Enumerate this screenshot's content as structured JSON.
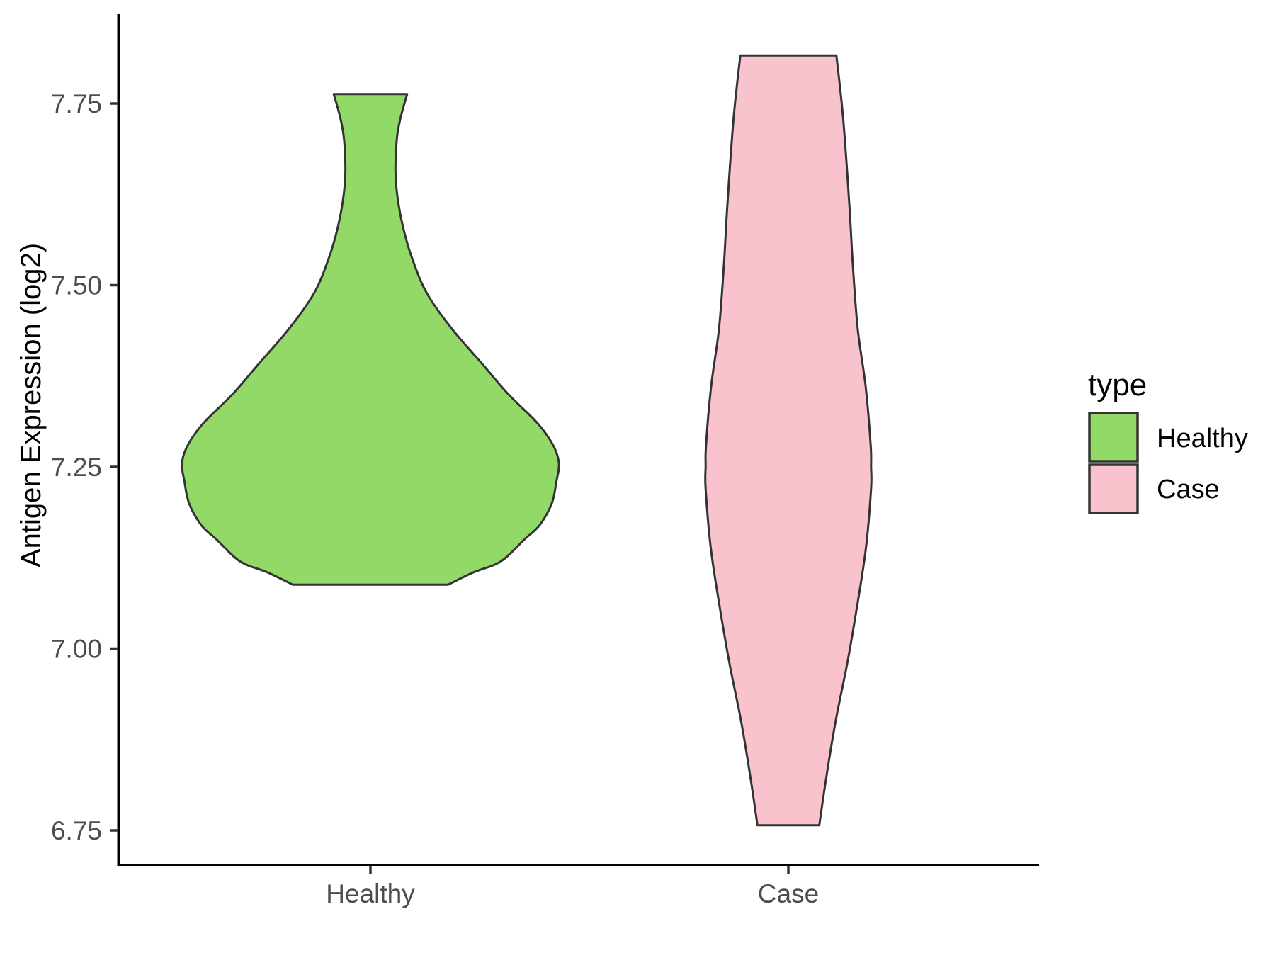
{
  "chart_data": {
    "type": "violin",
    "title": "",
    "xlabel": "",
    "ylabel": "Antigen Expression (log2)",
    "grid": false,
    "background": "#FFFFFF",
    "x_axis": {
      "categories": [
        "Healthy",
        "Case"
      ]
    },
    "y_axis": {
      "ticks": [
        6.75,
        7.0,
        7.25,
        7.5,
        7.75
      ],
      "tick_labels": [
        "6.75",
        "7.00",
        "7.25",
        "7.50",
        "7.75"
      ],
      "range_shown": [
        6.7,
        7.87
      ]
    },
    "legend": {
      "title": "type",
      "position": "right",
      "items": [
        {
          "label": "Healthy",
          "color": "#92D968"
        },
        {
          "label": "Case",
          "color": "#F9C3CD"
        }
      ]
    },
    "series": [
      {
        "name": "Healthy",
        "fill": "#92D968",
        "min": 7.088,
        "max": 7.763,
        "peak_value": 7.255,
        "peak_half_width": 0.451,
        "density_profile": [
          [
            7.763,
            0.088
          ],
          [
            7.73,
            0.072
          ],
          [
            7.7,
            0.063
          ],
          [
            7.655,
            0.06
          ],
          [
            7.62,
            0.065
          ],
          [
            7.58,
            0.078
          ],
          [
            7.54,
            0.098
          ],
          [
            7.49,
            0.134
          ],
          [
            7.44,
            0.195
          ],
          [
            7.39,
            0.27
          ],
          [
            7.35,
            0.33
          ],
          [
            7.31,
            0.4
          ],
          [
            7.28,
            0.437
          ],
          [
            7.255,
            0.451
          ],
          [
            7.23,
            0.445
          ],
          [
            7.2,
            0.434
          ],
          [
            7.17,
            0.405
          ],
          [
            7.15,
            0.368
          ],
          [
            7.12,
            0.312
          ],
          [
            7.105,
            0.247
          ],
          [
            7.088,
            0.186
          ]
        ]
      },
      {
        "name": "Case",
        "fill": "#F9C3CD",
        "min": 6.757,
        "max": 7.816,
        "peak_value": 7.24,
        "peak_half_width": 0.198,
        "density_profile": [
          [
            7.816,
            0.115
          ],
          [
            7.73,
            0.131
          ],
          [
            7.61,
            0.146
          ],
          [
            7.53,
            0.154
          ],
          [
            7.44,
            0.166
          ],
          [
            7.36,
            0.185
          ],
          [
            7.28,
            0.197
          ],
          [
            7.25,
            0.198
          ],
          [
            7.22,
            0.198
          ],
          [
            7.14,
            0.186
          ],
          [
            7.06,
            0.165
          ],
          [
            6.98,
            0.141
          ],
          [
            6.9,
            0.113
          ],
          [
            6.82,
            0.09
          ],
          [
            6.757,
            0.074
          ]
        ]
      }
    ],
    "style": {
      "outline": "#333333",
      "axis_line": "#000000",
      "tick_color": "#333333",
      "tick_label_color": "#4D4D4D",
      "text_color": "#000000"
    }
  }
}
